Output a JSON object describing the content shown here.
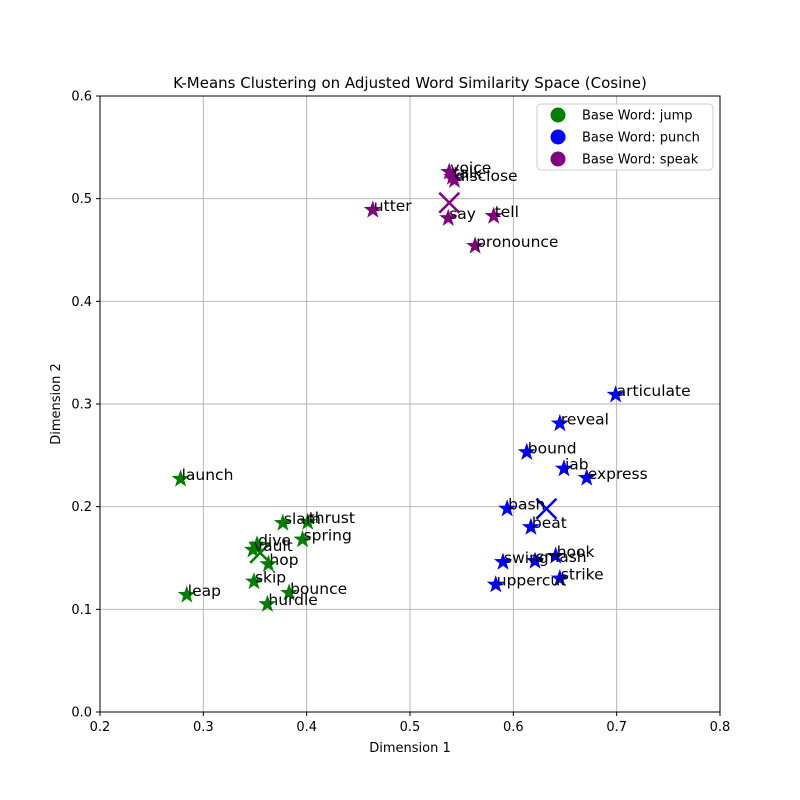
{
  "chart_data": {
    "type": "scatter",
    "title": "K-Means Clustering on Adjusted Word Similarity Space (Cosine)",
    "xlabel": "Dimension 1",
    "ylabel": "Dimension 2",
    "xlim": [
      0.2,
      0.8
    ],
    "ylim": [
      0.0,
      0.6
    ],
    "xticks": [
      "0.2",
      "0.3",
      "0.4",
      "0.5",
      "0.6",
      "0.7",
      "0.8"
    ],
    "yticks": [
      "0.0",
      "0.1",
      "0.2",
      "0.3",
      "0.4",
      "0.5",
      "0.6"
    ],
    "grid": true,
    "legend_position": "top-right",
    "series": [
      {
        "name": "Base Word: jump",
        "color": "#008000",
        "points": [
          {
            "label": "launch",
            "x": 0.278,
            "y": 0.227
          },
          {
            "label": "leap",
            "x": 0.284,
            "y": 0.114
          },
          {
            "label": "slam",
            "x": 0.377,
            "y": 0.184
          },
          {
            "label": "thrust",
            "x": 0.401,
            "y": 0.185
          },
          {
            "label": "spring",
            "x": 0.396,
            "y": 0.168
          },
          {
            "label": "dive",
            "x": 0.352,
            "y": 0.163
          },
          {
            "label": "vault",
            "x": 0.348,
            "y": 0.158
          },
          {
            "label": "hop",
            "x": 0.363,
            "y": 0.144
          },
          {
            "label": "skip",
            "x": 0.349,
            "y": 0.127
          },
          {
            "label": "bounce",
            "x": 0.383,
            "y": 0.116
          },
          {
            "label": "hurdle",
            "x": 0.362,
            "y": 0.105
          }
        ]
      },
      {
        "name": "Base Word: punch",
        "color": "#0000ff",
        "points": [
          {
            "label": "articulate",
            "x": 0.699,
            "y": 0.309
          },
          {
            "label": "reveal",
            "x": 0.645,
            "y": 0.281
          },
          {
            "label": "bound",
            "x": 0.613,
            "y": 0.253
          },
          {
            "label": "jab",
            "x": 0.649,
            "y": 0.237
          },
          {
            "label": "express",
            "x": 0.671,
            "y": 0.228
          },
          {
            "label": "bash",
            "x": 0.594,
            "y": 0.198
          },
          {
            "label": "beat",
            "x": 0.617,
            "y": 0.18
          },
          {
            "label": "swing",
            "x": 0.59,
            "y": 0.146
          },
          {
            "label": "smash",
            "x": 0.621,
            "y": 0.147
          },
          {
            "label": "hook",
            "x": 0.641,
            "y": 0.152
          },
          {
            "label": "strike",
            "x": 0.645,
            "y": 0.13
          },
          {
            "label": "uppercut",
            "x": 0.583,
            "y": 0.124
          }
        ]
      },
      {
        "name": "Base Word: speak",
        "color": "#800080",
        "points": [
          {
            "label": "voice",
            "x": 0.538,
            "y": 0.526
          },
          {
            "label": "talk",
            "x": 0.541,
            "y": 0.521
          },
          {
            "label": "disclose",
            "x": 0.543,
            "y": 0.518
          },
          {
            "label": "utter",
            "x": 0.464,
            "y": 0.489
          },
          {
            "label": "say",
            "x": 0.537,
            "y": 0.481
          },
          {
            "label": "tell",
            "x": 0.581,
            "y": 0.483
          },
          {
            "label": "pronounce",
            "x": 0.563,
            "y": 0.454
          }
        ]
      }
    ],
    "centroids": [
      {
        "color": "#008000",
        "x": 0.355,
        "y": 0.155
      },
      {
        "color": "#0000ff",
        "x": 0.632,
        "y": 0.198
      },
      {
        "color": "#800080",
        "x": 0.538,
        "y": 0.496
      }
    ]
  }
}
